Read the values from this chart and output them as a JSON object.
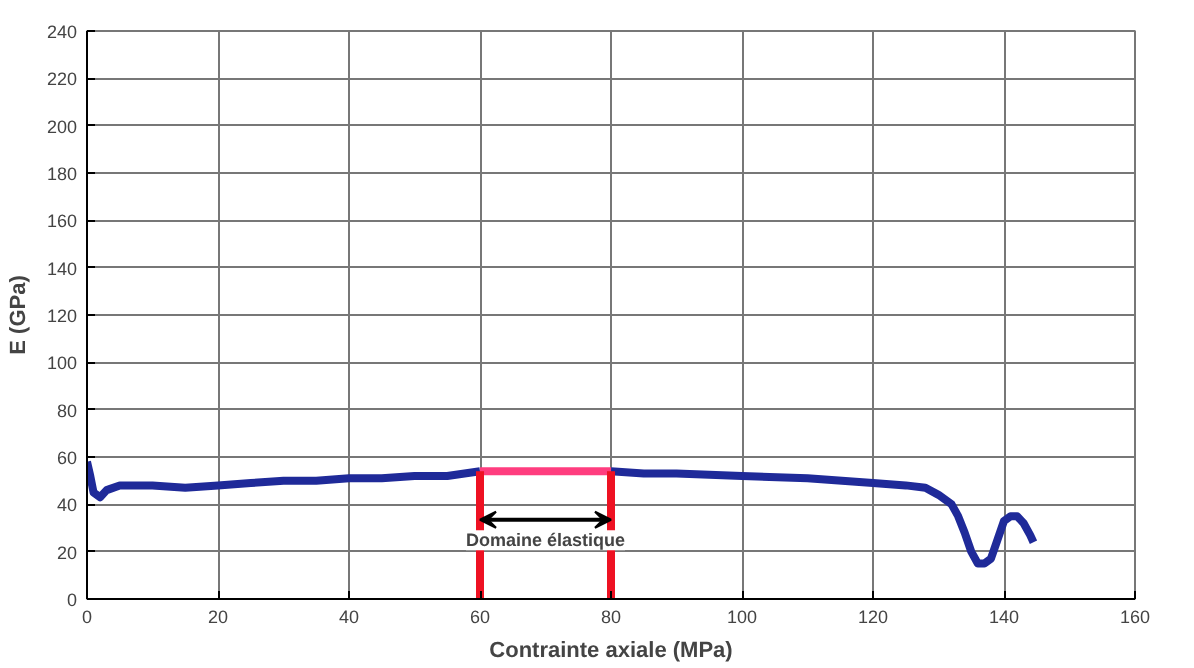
{
  "chart_data": {
    "type": "line",
    "xlabel": "Contrainte axiale (MPa)",
    "ylabel": "E (GPa)",
    "xlim": [
      0,
      160
    ],
    "xticks": [
      0,
      20,
      40,
      60,
      80,
      100,
      120,
      140,
      160
    ],
    "ylim": [
      0,
      240
    ],
    "yticks": [
      0,
      20,
      40,
      60,
      80,
      100,
      120,
      140,
      160,
      180,
      200,
      220,
      240
    ],
    "grid": true,
    "marker": "none",
    "line_style": "solid",
    "series": [
      {
        "color": "#1f2a99",
        "x": [
          0,
          0.5,
          1,
          2,
          3,
          5,
          8,
          10,
          15,
          20,
          25,
          30,
          35,
          40,
          45,
          50,
          55,
          60
        ],
        "values": [
          58,
          52,
          45,
          43,
          46,
          48,
          48,
          48,
          47,
          48,
          49,
          50,
          50,
          51,
          51,
          52,
          52,
          54
        ]
      },
      {
        "color": "#ff3d7f",
        "x": [
          60,
          65,
          70,
          75,
          80
        ],
        "values": [
          54,
          54,
          54,
          54,
          54
        ]
      },
      {
        "color": "#1f2a99",
        "x": [
          80,
          85,
          90,
          100,
          110,
          120,
          125,
          128,
          130,
          132,
          133,
          134,
          135,
          136,
          137,
          138,
          139,
          140,
          141,
          142,
          143,
          144,
          144.5
        ],
        "values": [
          54,
          53,
          53,
          52,
          51,
          49,
          48,
          47,
          44,
          40,
          35,
          28,
          20,
          15,
          15,
          17,
          25,
          33,
          35,
          35,
          32,
          27,
          24
        ]
      },
      {
        "color": "#ee1122",
        "x": [
          60,
          60
        ],
        "values": [
          0,
          54
        ]
      },
      {
        "color": "#ee1122",
        "x": [
          80,
          80
        ],
        "values": [
          0,
          54
        ]
      }
    ],
    "annotations": [
      "Domaine élastique"
    ]
  }
}
